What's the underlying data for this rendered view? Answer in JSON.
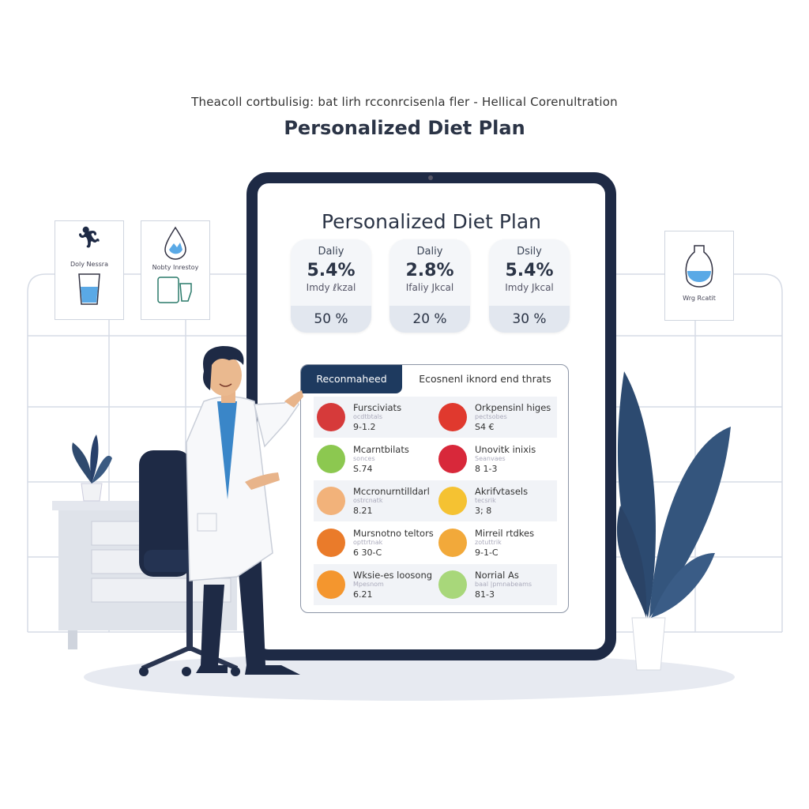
{
  "header": {
    "subtitle": "Theacoll cortbulisig: bat lirh rcconrcisenla fler - Hellical Corenultration",
    "title": "Personalized Diet Plan"
  },
  "posters": [
    {
      "label": "Doly Nessra",
      "icons": [
        "person-icon",
        "water-glass-icon"
      ]
    },
    {
      "label": "Nobty Inrestoy",
      "icons": [
        "water-drop-icon",
        "container-icon"
      ]
    },
    {
      "label": "Wrg Rcatit",
      "icons": [
        "vase-icon"
      ]
    }
  ],
  "tablet": {
    "title": "Personalized Diet Plan",
    "cards": [
      {
        "label": "Daliy",
        "value": "5.4%",
        "unit": "Imdy ℓkzal",
        "percent": "50 %"
      },
      {
        "label": "Daliy",
        "value": "2.8%",
        "unit": "Ifaliy Jkcal",
        "percent": "20 %"
      },
      {
        "label": "Dsily",
        "value": "5.4%",
        "unit": "Imdy Jkcal",
        "percent": "30 %"
      }
    ],
    "tabs": [
      {
        "label": "Reconmaheed",
        "active": true
      },
      {
        "label": "Ecosnenl iknord end thrats",
        "active": false
      }
    ],
    "foods": [
      [
        {
          "name": "Fursciviats",
          "sub": "ocdtbtals",
          "value": "9-1.2",
          "icon": "apple-icon",
          "color": "#d63a3a"
        },
        {
          "name": "Orkpensinl higes",
          "sub": "pectsobes",
          "value": "S4 €",
          "icon": "tomato-icon",
          "color": "#e0392e"
        }
      ],
      [
        {
          "name": "Mcarntbilats",
          "sub": "sonces",
          "value": "S.74",
          "icon": "green-apple-icon",
          "color": "#8cc850"
        },
        {
          "name": "Unovitk inixis",
          "sub": "Seanvaes",
          "value": "8 1-3",
          "icon": "radish-icon",
          "color": "#d8283a"
        }
      ],
      [
        {
          "name": "Mccronurntilldarl",
          "sub": "ostrcnatk",
          "value": "8.21",
          "icon": "bread-icon",
          "color": "#f2b27a"
        },
        {
          "name": "Akrifvtasels",
          "sub": "tecsrik",
          "value": "3; 8",
          "icon": "lemon-icon",
          "color": "#f5c232"
        }
      ],
      [
        {
          "name": "Mursnotno teltors",
          "sub": "opttrtnak",
          "value": "6 30-C",
          "icon": "orange-icon",
          "color": "#ea7b2a"
        },
        {
          "name": "Mirreil rtdkes",
          "sub": "zotuttrik",
          "value": "9-1-C",
          "icon": "cookie-icon",
          "color": "#f2a93a"
        }
      ],
      [
        {
          "name": "Wksie-es loosong",
          "sub": "Mpesnom",
          "value": "6.21",
          "icon": "citrus-icon",
          "color": "#f4962e"
        },
        {
          "name": "Norrial As",
          "sub": "baal |pmnabeams",
          "value": "81-3",
          "icon": "lime-icon",
          "color": "#a8d77a"
        }
      ]
    ]
  },
  "colors": {
    "navy": "#1e2a45",
    "tab_active": "#1e3a5f",
    "accent_blue": "#5aa9e6",
    "floor": "#e7eaf1"
  }
}
